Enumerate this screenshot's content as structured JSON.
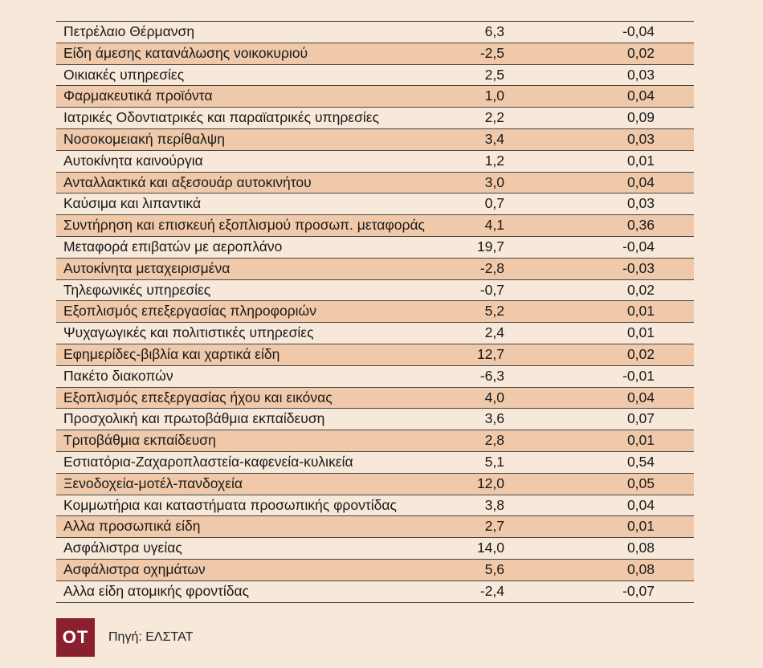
{
  "chart_data": {
    "type": "table",
    "rows": [
      {
        "name": "Πετρέλαιο Θέρμανση",
        "v1": "6,3",
        "v2": "-0,04"
      },
      {
        "name": "Είδη άμεσης κατανάλωσης νοικοκυριού",
        "v1": "-2,5",
        "v2": "0,02"
      },
      {
        "name": "Οικιακές υπηρεσίες",
        "v1": "2,5",
        "v2": "0,03"
      },
      {
        "name": "Φαρμακευτικά προϊόντα",
        "v1": "1,0",
        "v2": "0,04"
      },
      {
        "name": "Ιατρικές Οδοντιατρικές  και παραϊατρικές υπηρεσίες",
        "v1": "2,2",
        "v2": "0,09"
      },
      {
        "name": "Νοσοκομειακή περίθαλψη",
        "v1": "3,4",
        "v2": "0,03"
      },
      {
        "name": "Αυτοκίνητα καινούργια",
        "v1": "1,2",
        "v2": "0,01"
      },
      {
        "name": "Ανταλλακτικά και αξεσουάρ αυτοκινήτου",
        "v1": "3,0",
        "v2": "0,04"
      },
      {
        "name": "Καύσιμα και λιπαντικά",
        "v1": "0,7",
        "v2": "0,03"
      },
      {
        "name": "Συντήρηση και επισκευή εξοπλισμού προσωπ. μεταφοράς",
        "v1": "4,1",
        "v2": "0,36"
      },
      {
        "name": "Μεταφορά επιβατών με αεροπλάνο",
        "v1": "19,7",
        "v2": "-0,04"
      },
      {
        "name": "Αυτοκίνητα μεταχειρισμένα",
        "v1": "-2,8",
        "v2": "-0,03"
      },
      {
        "name": "Τηλεφωνικές υπηρεσίες",
        "v1": "-0,7",
        "v2": "0,02"
      },
      {
        "name": "Εξοπλισμός επεξεργασίας πληροφοριών",
        "v1": "5,2",
        "v2": "0,01"
      },
      {
        "name": "Ψυχαγωγικές και πολιτιστικές υπηρεσίες",
        "v1": "2,4",
        "v2": "0,01"
      },
      {
        "name": "Εφημερίδες-βιβλία και χαρτικά είδη",
        "v1": "12,7",
        "v2": "0,02"
      },
      {
        "name": "Πακέτο διακοπών",
        "v1": "-6,3",
        "v2": "-0,01"
      },
      {
        "name": "Εξοπλισμός επεξεργασίας ήχου και εικόνας",
        "v1": "4,0",
        "v2": "0,04"
      },
      {
        "name": "Προσχολική και πρωτοβάθμια εκπαίδευση",
        "v1": "3,6",
        "v2": "0,07"
      },
      {
        "name": "Τριτοβάθμια εκπαίδευση",
        "v1": "2,8",
        "v2": "0,01"
      },
      {
        "name": "Εστιατόρια-Ζαχαροπλαστεία-καφενεία-κυλικεία",
        "v1": "5,1",
        "v2": "0,54"
      },
      {
        "name": "Ξενοδοχεία-μοτέλ-πανδοχεία",
        "v1": "12,0",
        "v2": "0,05"
      },
      {
        "name": "Κομμωτήρια και καταστήματα προσωπικής φροντίδας",
        "v1": "3,8",
        "v2": "0,04"
      },
      {
        "name": "Αλλα προσωπικά είδη",
        "v1": "2,7",
        "v2": "0,01"
      },
      {
        "name": "Ασφάλιστρα υγείας",
        "v1": "14,0",
        "v2": "0,08"
      },
      {
        "name": "Ασφάλιστρα οχημάτων",
        "v1": "5,6",
        "v2": "0,08"
      },
      {
        "name": "Αλλα είδη ατομικής φροντίδας",
        "v1": "-2,4",
        "v2": "-0,07"
      }
    ]
  },
  "footer": {
    "logo_text": "OT",
    "source": "Πηγή: ΕΛΣΤΑΤ"
  },
  "colors": {
    "background": "#f7e8da",
    "row_alt": "#efc9a9",
    "logo": "#8a1f2e"
  }
}
